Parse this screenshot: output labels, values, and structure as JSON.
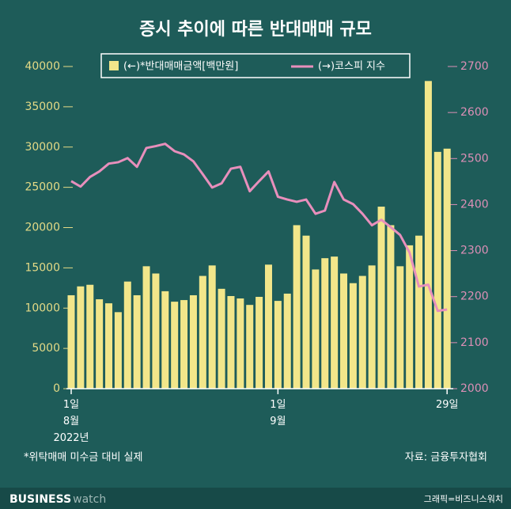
{
  "chart_data": {
    "type": "bar_line",
    "title": "증시 추이에 따른 반대매매 규모",
    "categories": [
      "1일\n8월\n2022년",
      null,
      null,
      null,
      null,
      null,
      null,
      null,
      null,
      null,
      null,
      null,
      null,
      null,
      null,
      null,
      null,
      null,
      null,
      null,
      null,
      null,
      "1일\n9월",
      null,
      null,
      null,
      null,
      null,
      null,
      null,
      null,
      null,
      null,
      null,
      null,
      null,
      null,
      null,
      null,
      null,
      "29일"
    ],
    "series": [
      {
        "name": "(←)*반대매매금액[백만원]",
        "color": "#f2e68a",
        "type": "bar",
        "values": [
          11600,
          12700,
          12900,
          11100,
          10600,
          9500,
          13300,
          11600,
          15200,
          14300,
          12100,
          10800,
          11000,
          11600,
          14000,
          15300,
          12400,
          11500,
          11200,
          10400,
          11400,
          15400,
          10900,
          11800,
          20300,
          19000,
          14800,
          16200,
          16400,
          14300,
          13100,
          14000,
          15300,
          22600,
          20300,
          15200,
          17800,
          19000,
          38200,
          29400,
          29800
        ]
      },
      {
        "name": "(→)코스피 지수",
        "color": "#e88fbc",
        "type": "line",
        "axis": "y2",
        "values": [
          2451,
          2439,
          2460,
          2472,
          2489,
          2492,
          2501,
          2482,
          2523,
          2527,
          2532,
          2516,
          2509,
          2494,
          2466,
          2437,
          2446,
          2478,
          2482,
          2429,
          2451,
          2472,
          2417,
          2411,
          2406,
          2411,
          2380,
          2387,
          2449,
          2411,
          2401,
          2380,
          2355,
          2367,
          2351,
          2334,
          2296,
          2222,
          2226,
          2169,
          2172
        ]
      }
    ],
    "ylim": [
      0,
      40000
    ],
    "yticks": [
      0,
      5000,
      10000,
      15000,
      20000,
      25000,
      30000,
      35000,
      40000
    ],
    "y2lim": [
      2000,
      2700
    ],
    "y2ticks": [
      2000,
      2100,
      2200,
      2300,
      2400,
      2500,
      2600,
      2700
    ],
    "ytick_color": "#e4da86",
    "y2tick_color": "#dc8fb6",
    "note": "*위탁매매 미수금 대비 실제",
    "source": "자료: 금융투자협회",
    "brand_bold": "BUSINESS",
    "brand_light": "watch",
    "credit": "그래픽=비즈니스워치"
  }
}
